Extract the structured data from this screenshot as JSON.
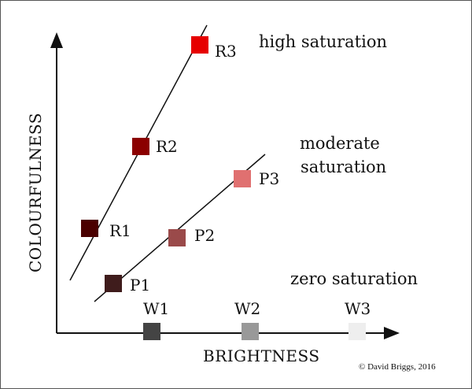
{
  "axes": {
    "x_label": "BRIGHTNESS",
    "y_label": "COLOURFULNESS"
  },
  "saturation_labels": {
    "high": "high saturation",
    "moderate_line1": "moderate",
    "moderate_line2": "saturation",
    "zero": "zero saturation"
  },
  "points": [
    {
      "label": "R1",
      "color": "#4a0000"
    },
    {
      "label": "R2",
      "color": "#8b0000"
    },
    {
      "label": "R3",
      "color": "#e60000"
    },
    {
      "label": "P1",
      "color": "#3f1c1c"
    },
    {
      "label": "P2",
      "color": "#9a4a4a"
    },
    {
      "label": "P3",
      "color": "#e07070"
    },
    {
      "label": "W1",
      "color": "#444444"
    },
    {
      "label": "W2",
      "color": "#999999"
    },
    {
      "label": "W3",
      "color": "#eeeeee"
    }
  ],
  "credit": "© David Briggs, 2016"
}
